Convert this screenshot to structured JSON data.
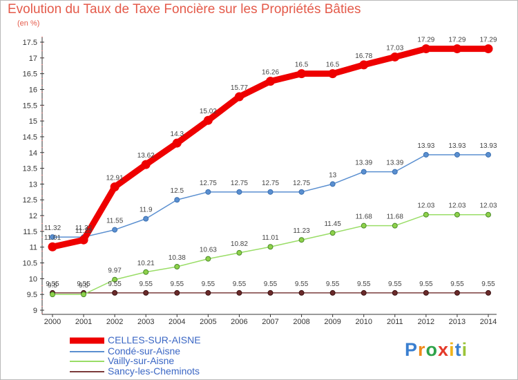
{
  "title": "Evolution du Taux de Taxe Foncière sur les Propriétés Bâties",
  "unit_label": "(en %)",
  "logo": {
    "letters": [
      "P",
      "r",
      "o",
      "x",
      "i",
      "t",
      "i"
    ],
    "colors": [
      "#3a7fd0",
      "#f08a1c",
      "#2fa34a",
      "#e43a2a",
      "#f0b41c",
      "#3a7fd0",
      "#9bc43a"
    ]
  },
  "chart_data": {
    "type": "line",
    "x": [
      2000,
      2001,
      2002,
      2003,
      2004,
      2005,
      2006,
      2007,
      2008,
      2009,
      2010,
      2011,
      2012,
      2013,
      2014
    ],
    "ylim": [
      9,
      17.5
    ],
    "yticks": [
      9,
      9.5,
      10,
      10.5,
      11,
      11.5,
      12,
      12.5,
      13,
      13.5,
      14,
      14.5,
      15,
      15.5,
      16,
      16.5,
      17,
      17.5
    ],
    "grid": false,
    "legend": "bottom-left",
    "series": [
      {
        "name": "CELLES-SUR-AISNE",
        "color": "#ee0000",
        "values": [
          11.01,
          11.23,
          12.91,
          13.62,
          14.3,
          15.02,
          15.77,
          16.26,
          16.5,
          16.5,
          16.78,
          17.03,
          17.29,
          17.29,
          17.29
        ],
        "labels": [
          "11.01",
          "11.23",
          "12.91",
          "13.62",
          "14.3",
          "15.02",
          "15.77",
          "16.26",
          "16.5",
          "16.5",
          "16.78",
          "17.03",
          "17.29",
          "17.29",
          "17.29"
        ]
      },
      {
        "name": "Condé-sur-Aisne",
        "color": "#5a8fd0",
        "values": [
          11.32,
          11.32,
          11.55,
          11.9,
          12.5,
          12.75,
          12.75,
          12.75,
          12.75,
          13,
          13.39,
          13.39,
          13.93,
          13.93,
          13.93
        ],
        "labels": [
          "11.32",
          "11.32",
          "11.55",
          "11.9",
          "12.5",
          "12.75",
          "12.75",
          "12.75",
          "12.75",
          "13",
          "13.39",
          "13.39",
          "13.93",
          "13.93",
          "13.93"
        ]
      },
      {
        "name": "Vailly-sur-Aisne",
        "color": "#99dd66",
        "values": [
          9.5,
          9.5,
          9.97,
          10.21,
          10.38,
          10.63,
          10.82,
          11.01,
          11.23,
          11.45,
          11.68,
          11.68,
          12.03,
          12.03,
          12.03
        ],
        "labels": [
          "9.5",
          "9.5",
          "9.97",
          "10.21",
          "10.38",
          "10.63",
          "10.82",
          "11.01",
          "11.23",
          "11.45",
          "11.68",
          "11.68",
          "12.03",
          "12.03",
          "12.03"
        ]
      },
      {
        "name": "Sancy-les-Cheminots",
        "color": "#7a3a3a",
        "values": [
          9.55,
          9.55,
          9.55,
          9.55,
          9.55,
          9.55,
          9.55,
          9.55,
          9.55,
          9.55,
          9.55,
          9.55,
          9.55,
          9.55,
          9.55
        ],
        "labels": [
          "9.55",
          "9.55",
          "9.55",
          "9.55",
          "9.55",
          "9.55",
          "9.55",
          "9.55",
          "9.55",
          "9.55",
          "9.55",
          "9.55",
          "9.55",
          "9.55",
          "9.55"
        ]
      }
    ]
  }
}
